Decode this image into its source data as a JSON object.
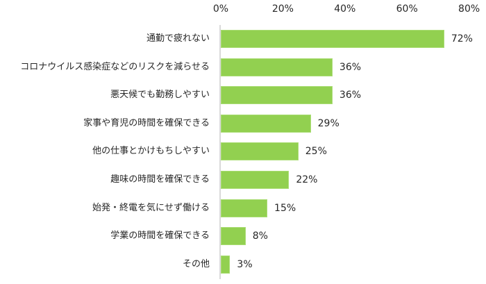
{
  "chart_data": {
    "type": "bar",
    "orientation": "horizontal",
    "title": "",
    "xlabel": "",
    "ylabel": "",
    "xlim": [
      0,
      80
    ],
    "x_ticks": [
      "0%",
      "20%",
      "40%",
      "60%",
      "80%"
    ],
    "x_tick_values": [
      0,
      20,
      40,
      60,
      80
    ],
    "axis_position": "top",
    "grid": false,
    "legend": null,
    "bar_color": "#92d050",
    "categories": [
      "通勤で疲れない",
      "コロナウイルス感染症などのリスクを減らせる",
      "悪天候でも勤務しやすい",
      "家事や育児の時間を確保できる",
      "他の仕事とかけもちしやすい",
      "趣味の時間を確保できる",
      "始発・終電を気にせず働ける",
      "学業の時間を確保できる",
      "その他"
    ],
    "values": [
      72,
      36,
      36,
      29,
      25,
      22,
      15,
      8,
      3
    ],
    "value_labels": [
      "72%",
      "36%",
      "36%",
      "29%",
      "25%",
      "22%",
      "15%",
      "8%",
      "3%"
    ]
  }
}
